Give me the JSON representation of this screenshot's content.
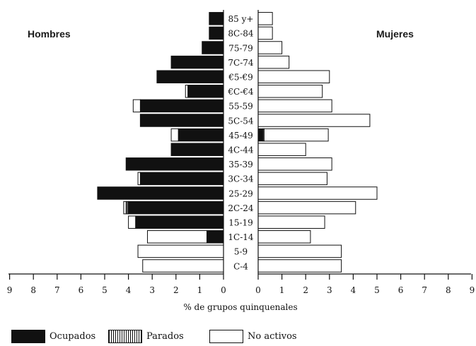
{
  "chart_data": {
    "type": "bar",
    "subtype": "population-pyramid",
    "left_title": "Hombres",
    "right_title": "Mujeres",
    "xlabel": "% de grupos quinquenales",
    "xlim": [
      0,
      9
    ],
    "x_ticks": [
      "9",
      "8",
      "7",
      "6",
      "5",
      "4",
      "3",
      "2",
      "1",
      "0"
    ],
    "categories": [
      "85 y+",
      "80-84",
      "75-79",
      "70-74",
      "65-69",
      "60-64",
      "55-59",
      "50-54",
      "45-49",
      "40-44",
      "35-39",
      "30-34",
      "25-29",
      "20-24",
      "15-19",
      "10-14",
      "5-9",
      "0-4"
    ],
    "category_labels": [
      "85 y+",
      "8C-84",
      "75-79",
      "7C-74",
      "€5-€9",
      "€C-€4",
      "55-59",
      "5C-54",
      "45-49",
      "4C-44",
      "35-39",
      "3C-34",
      "25-29",
      "2C-24",
      "15-19",
      "1C-14",
      "5-9",
      "C-4"
    ],
    "series": [
      {
        "name": "Ocupados",
        "color": "#111111",
        "men": [
          0.6,
          0.6,
          0.9,
          2.2,
          2.8,
          1.5,
          3.5,
          3.5,
          1.9,
          2.2,
          4.1,
          3.5,
          5.3,
          4.0,
          3.7,
          0.7,
          0.0,
          0.0
        ],
        "women": [
          0.0,
          0.0,
          0.0,
          0.0,
          0.0,
          0.0,
          0.0,
          0.0,
          0.2,
          0.0,
          0.0,
          0.0,
          0.0,
          0.0,
          0.0,
          0.0,
          0.0,
          0.0
        ]
      },
      {
        "name": "Parados",
        "color": "#555555",
        "men": [
          0.0,
          0.0,
          0.0,
          0.0,
          0.0,
          0.0,
          0.0,
          0.0,
          0.0,
          0.0,
          0.0,
          0.0,
          0.0,
          0.1,
          0.0,
          0.0,
          0.0,
          0.0
        ],
        "women": [
          0.0,
          0.0,
          0.0,
          0.0,
          0.0,
          0.0,
          0.0,
          0.0,
          0.05,
          0.0,
          0.0,
          0.0,
          0.0,
          0.0,
          0.0,
          0.0,
          0.0,
          0.0
        ]
      },
      {
        "name": "No activos",
        "color": "#ffffff",
        "men": [
          0.0,
          0.0,
          0.0,
          0.0,
          0.0,
          0.1,
          0.3,
          0.0,
          0.3,
          0.0,
          0.0,
          0.1,
          0.0,
          0.1,
          0.3,
          2.5,
          3.6,
          3.4
        ],
        "women": [
          0.6,
          0.6,
          1.0,
          1.3,
          3.0,
          2.7,
          3.1,
          4.7,
          2.7,
          2.0,
          3.1,
          2.9,
          5.0,
          4.1,
          2.8,
          2.2,
          3.5,
          3.5
        ]
      }
    ],
    "legend_position": "bottom-left"
  }
}
